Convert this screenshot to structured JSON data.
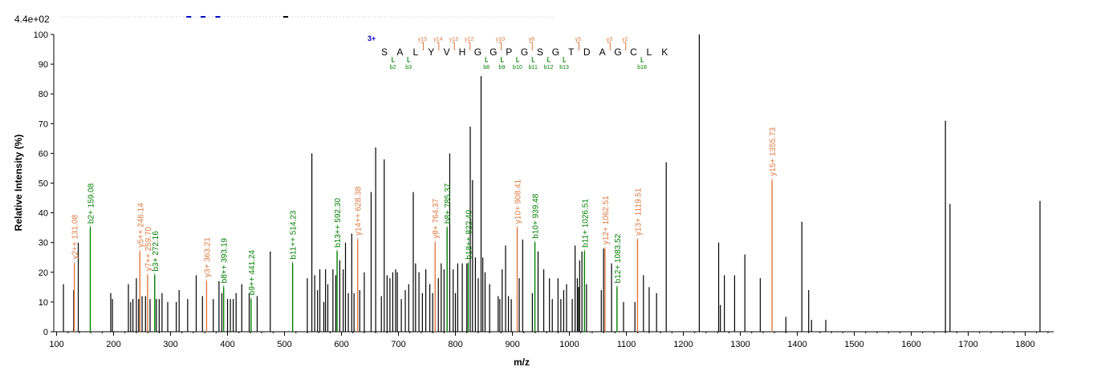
{
  "chart_data": {
    "type": "bar",
    "title": "",
    "max_intensity_label": "4.4e+02",
    "xlabel": "m/z",
    "ylabel": "Relative   Intensity (%)",
    "xlim": [
      95,
      1850
    ],
    "ylim": [
      0,
      100
    ],
    "x_ticks": [
      100,
      200,
      300,
      400,
      500,
      600,
      700,
      800,
      900,
      1000,
      1100,
      1200,
      1300,
      1400,
      1500,
      1600,
      1700,
      1800
    ],
    "y_ticks": [
      0,
      10,
      20,
      30,
      40,
      50,
      60,
      70,
      80,
      90,
      100
    ],
    "colors": {
      "b_ion": "#008000",
      "y_ion": "#e07840",
      "unassigned": "#000000",
      "charge": "#0000c0"
    },
    "sequence": {
      "charge_label": "3+",
      "residues": [
        "S",
        "A",
        "L",
        "Y",
        "V",
        "H",
        "G",
        "G",
        "P",
        "G",
        "S",
        "G",
        "T",
        "D",
        "A",
        "G",
        "C",
        "L",
        "K"
      ],
      "y_labels": [
        {
          "after": 3,
          "label": "y15"
        },
        {
          "after": 4,
          "label": "y14"
        },
        {
          "after": 5,
          "label": "y13"
        },
        {
          "after": 6,
          "label": "y12"
        },
        {
          "after": 8,
          "label": "y10"
        },
        {
          "after": 10,
          "label": "y8"
        },
        {
          "after": 13,
          "label": "y5"
        },
        {
          "after": 15,
          "label": "y3"
        },
        {
          "after": 16,
          "label": "y2"
        }
      ],
      "b_labels": [
        {
          "after": 1,
          "label": "b2"
        },
        {
          "after": 2,
          "label": "b3"
        },
        {
          "after": 7,
          "label": "b8"
        },
        {
          "after": 8,
          "label": "b9"
        },
        {
          "after": 9,
          "label": "b10"
        },
        {
          "after": 10,
          "label": "b11"
        },
        {
          "after": 11,
          "label": "b12"
        },
        {
          "after": 12,
          "label": "b13"
        },
        {
          "after": 17,
          "label": "b18"
        }
      ]
    },
    "annotated_peaks": [
      {
        "mz": 131.08,
        "intensity": 23,
        "ion": "y",
        "label": "y2++ 131.08"
      },
      {
        "mz": 159.08,
        "intensity": 35,
        "ion": "b",
        "label": "b2+ 159.08"
      },
      {
        "mz": 246.14,
        "intensity": 27,
        "ion": "y",
        "label": "y5++ 246.14"
      },
      {
        "mz": 259.7,
        "intensity": 19,
        "ion": "y",
        "label": "y7++ 259.70"
      },
      {
        "mz": 272.16,
        "intensity": 19,
        "ion": "b",
        "label": "b3+ 272.16"
      },
      {
        "mz": 363.21,
        "intensity": 17,
        "ion": "y",
        "label": "y3+ 363.21"
      },
      {
        "mz": 393.19,
        "intensity": 15,
        "ion": "b",
        "label": "b8++ 393.19"
      },
      {
        "mz": 441.24,
        "intensity": 11,
        "ion": "b",
        "label": "b9++ 441.24"
      },
      {
        "mz": 514.23,
        "intensity": 23,
        "ion": "b",
        "label": "b11++ 514.23"
      },
      {
        "mz": 592.3,
        "intensity": 27,
        "ion": "b",
        "label": "b13++ 592.30"
      },
      {
        "mz": 628.38,
        "intensity": 31,
        "ion": "y",
        "label": "y14++ 628.38"
      },
      {
        "mz": 764.37,
        "intensity": 30,
        "ion": "y",
        "label": "y8+ 764.37"
      },
      {
        "mz": 785.37,
        "intensity": 35,
        "ion": "b",
        "label": "b8+ 785.37"
      },
      {
        "mz": 822.4,
        "intensity": 23,
        "ion": "b",
        "label": "b18++ 822.40"
      },
      {
        "mz": 908.41,
        "intensity": 35,
        "ion": "y",
        "label": "y10+ 908.41"
      },
      {
        "mz": 939.48,
        "intensity": 30,
        "ion": "b",
        "label": "b10+ 939.48"
      },
      {
        "mz": 1026.51,
        "intensity": 27,
        "ion": "b",
        "label": "b11+ 1026.51"
      },
      {
        "mz": 1062.51,
        "intensity": 28,
        "ion": "y",
        "label": "y12+ 1062.51"
      },
      {
        "mz": 1083.52,
        "intensity": 15,
        "ion": "b",
        "label": "b12+ 1083.52"
      },
      {
        "mz": 1119.51,
        "intensity": 31,
        "ion": "y",
        "label": "y13+ 1119.51"
      },
      {
        "mz": 1355.73,
        "intensity": 51,
        "ion": "y",
        "label": "y15+ 1355.73"
      }
    ],
    "unassigned_peaks": [
      [
        112,
        16
      ],
      [
        130,
        14
      ],
      [
        138,
        30
      ],
      [
        195,
        13
      ],
      [
        198,
        11
      ],
      [
        226,
        16
      ],
      [
        230,
        10
      ],
      [
        234,
        11
      ],
      [
        240,
        18
      ],
      [
        244,
        11
      ],
      [
        250,
        12
      ],
      [
        256,
        12
      ],
      [
        264,
        11
      ],
      [
        275,
        11
      ],
      [
        280,
        11
      ],
      [
        285,
        13
      ],
      [
        295,
        10
      ],
      [
        310,
        10
      ],
      [
        315,
        14
      ],
      [
        330,
        11
      ],
      [
        345,
        19
      ],
      [
        356,
        12
      ],
      [
        375,
        11
      ],
      [
        385,
        17
      ],
      [
        390,
        13
      ],
      [
        400,
        11
      ],
      [
        405,
        11
      ],
      [
        410,
        11
      ],
      [
        415,
        13
      ],
      [
        425,
        16
      ],
      [
        438,
        13
      ],
      [
        452,
        12
      ],
      [
        475,
        27
      ],
      [
        540,
        18
      ],
      [
        548,
        60
      ],
      [
        553,
        19
      ],
      [
        558,
        14
      ],
      [
        562,
        21
      ],
      [
        569,
        10
      ],
      [
        572,
        21
      ],
      [
        576,
        16
      ],
      [
        585,
        21
      ],
      [
        590,
        19
      ],
      [
        597,
        24
      ],
      [
        603,
        21
      ],
      [
        607,
        30
      ],
      [
        612,
        13
      ],
      [
        618,
        33
      ],
      [
        622,
        13
      ],
      [
        632,
        14
      ],
      [
        640,
        20
      ],
      [
        652,
        47
      ],
      [
        660,
        62
      ],
      [
        670,
        12
      ],
      [
        675,
        58
      ],
      [
        680,
        19
      ],
      [
        685,
        18
      ],
      [
        690,
        20
      ],
      [
        695,
        21
      ],
      [
        698,
        20
      ],
      [
        705,
        11
      ],
      [
        712,
        14
      ],
      [
        718,
        16
      ],
      [
        726,
        47
      ],
      [
        730,
        23
      ],
      [
        736,
        20
      ],
      [
        742,
        13
      ],
      [
        748,
        21
      ],
      [
        755,
        16
      ],
      [
        760,
        13
      ],
      [
        770,
        18
      ],
      [
        775,
        23
      ],
      [
        780,
        21
      ],
      [
        790,
        60
      ],
      [
        796,
        21
      ],
      [
        800,
        13
      ],
      [
        804,
        23
      ],
      [
        812,
        23
      ],
      [
        820,
        23
      ],
      [
        826,
        69
      ],
      [
        830,
        51
      ],
      [
        835,
        25
      ],
      [
        840,
        18
      ],
      [
        845,
        86
      ],
      [
        848,
        25
      ],
      [
        852,
        20
      ],
      [
        860,
        16
      ],
      [
        875,
        12
      ],
      [
        878,
        11
      ],
      [
        882,
        21
      ],
      [
        888,
        29
      ],
      [
        893,
        12
      ],
      [
        898,
        11
      ],
      [
        912,
        18
      ],
      [
        918,
        31
      ],
      [
        935,
        13
      ],
      [
        945,
        27
      ],
      [
        955,
        21
      ],
      [
        965,
        18
      ],
      [
        970,
        11
      ],
      [
        980,
        18
      ],
      [
        985,
        11
      ],
      [
        990,
        14
      ],
      [
        995,
        16
      ],
      [
        1005,
        11
      ],
      [
        1010,
        29
      ],
      [
        1014,
        18
      ],
      [
        1016,
        15
      ],
      [
        1018,
        24
      ],
      [
        1022,
        27
      ],
      [
        1030,
        16
      ],
      [
        1056,
        14
      ],
      [
        1060,
        28
      ],
      [
        1074,
        23
      ],
      [
        1095,
        10
      ],
      [
        1115,
        10
      ],
      [
        1130,
        19
      ],
      [
        1140,
        15
      ],
      [
        1153,
        13
      ],
      [
        1170,
        57
      ],
      [
        1228,
        100
      ],
      [
        1262,
        30
      ],
      [
        1265,
        9
      ],
      [
        1272,
        19
      ],
      [
        1290,
        19
      ],
      [
        1308,
        26
      ],
      [
        1335,
        18
      ],
      [
        1380,
        5
      ],
      [
        1408,
        37
      ],
      [
        1420,
        14
      ],
      [
        1425,
        4
      ],
      [
        1450,
        4
      ],
      [
        1660,
        71
      ],
      [
        1668,
        43
      ],
      [
        1826,
        44
      ]
    ],
    "top_peaks_note": "",
    "top_marks": [
      {
        "mz": 332,
        "ion": "charge"
      },
      {
        "mz": 357,
        "ion": "charge"
      },
      {
        "mz": 383,
        "ion": "charge"
      },
      {
        "mz": 502,
        "ion": "unassigned"
      }
    ]
  }
}
